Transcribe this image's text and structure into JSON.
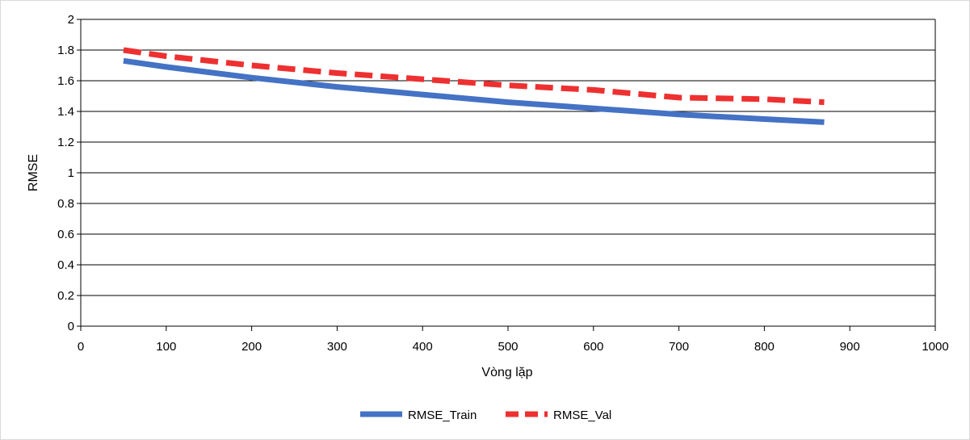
{
  "chart_data": {
    "type": "line",
    "title": "",
    "xlabel": "Vòng lặp",
    "ylabel": "RMSE",
    "xlim": [
      0,
      1000
    ],
    "ylim": [
      0,
      2
    ],
    "xticks": [
      0,
      100,
      200,
      300,
      400,
      500,
      600,
      700,
      800,
      900,
      1000
    ],
    "yticks": [
      0,
      0.2,
      0.4,
      0.6,
      0.8,
      1,
      1.2,
      1.4,
      1.6,
      1.8,
      2
    ],
    "xtick_labels": [
      "0",
      "100",
      "200",
      "300",
      "400",
      "500",
      "600",
      "700",
      "800",
      "900",
      "1000"
    ],
    "ytick_labels": [
      "0",
      "0.2",
      "0.4",
      "0.6",
      "0.8",
      "1",
      "1.2",
      "1.4",
      "1.6",
      "1.8",
      "2"
    ],
    "grid": "horizontal",
    "legend_position": "bottom",
    "series": [
      {
        "name": "RMSE_Train",
        "color": "#4472c4",
        "style": "solid",
        "x": [
          50,
          100,
          200,
          300,
          400,
          500,
          600,
          700,
          800,
          870
        ],
        "y": [
          1.73,
          1.69,
          1.62,
          1.56,
          1.51,
          1.46,
          1.42,
          1.38,
          1.35,
          1.33
        ]
      },
      {
        "name": "RMSE_Val",
        "color": "#ee3030",
        "style": "dashed",
        "x": [
          50,
          100,
          200,
          300,
          400,
          500,
          600,
          700,
          800,
          870
        ],
        "y": [
          1.8,
          1.76,
          1.7,
          1.65,
          1.61,
          1.57,
          1.54,
          1.49,
          1.48,
          1.46
        ]
      }
    ]
  }
}
